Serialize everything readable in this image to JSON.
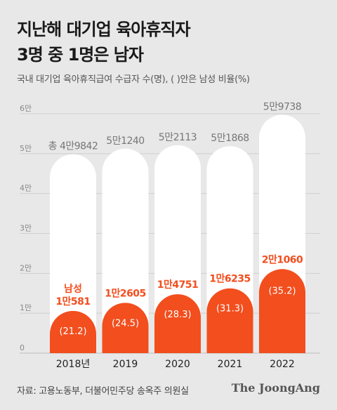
{
  "headline": {
    "line1": "지난해 대기업 육아휴직자",
    "line2": "3명 중 1명은 남자"
  },
  "subtitle": "국내 대기업 육아휴직급여 수급자 수(명), ( )안은 남성 비율(%)",
  "source": "자료: 고용노동부, 더불어민주당 송옥주 의원실",
  "brand": "The JoongAng",
  "colors": {
    "total_bar": "#ffffff",
    "male_bar": "#f24e1e",
    "male_text": "#f24e1e",
    "total_text": "#777777"
  },
  "chart_data": {
    "type": "bar",
    "categories": [
      "2018년",
      "2019",
      "2020",
      "2021",
      "2022"
    ],
    "ylim": [
      0,
      60000
    ],
    "y_ticks": [
      {
        "value": 0,
        "label": "0"
      },
      {
        "value": 10000,
        "label": "1만"
      },
      {
        "value": 20000,
        "label": "2만"
      },
      {
        "value": 30000,
        "label": "3만"
      },
      {
        "value": 40000,
        "label": "4만"
      },
      {
        "value": 50000,
        "label": "5만"
      },
      {
        "value": 60000,
        "label": "6만"
      }
    ],
    "grid": true,
    "series": [
      {
        "values": [
          49842,
          51240,
          52113,
          51868,
          59738
        ],
        "labels": [
          "총 4만9842",
          "5만1240",
          "5만2113",
          "5만1868",
          "5만9738"
        ]
      },
      {
        "values": [
          10581,
          12605,
          14751,
          16235,
          21060
        ],
        "labels": [
          "남성 1만581",
          "1만2605",
          "1만4751",
          "1만6235",
          "2만1060"
        ],
        "ratios": [
          "(21.2)",
          "(24.5)",
          "(28.3)",
          "(31.3)",
          "(35.2)"
        ]
      }
    ]
  }
}
